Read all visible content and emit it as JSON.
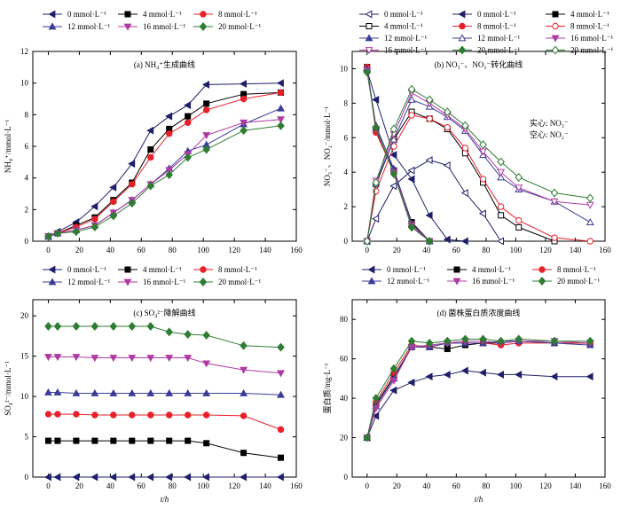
{
  "chart_data": [
    {
      "type": "line",
      "title": "(a) NH₄⁺生成曲线",
      "xlabel": "",
      "ylabel": "NH₄⁺/mmol·L⁻¹",
      "xlim": [
        -10,
        160
      ],
      "ylim": [
        0,
        12
      ],
      "xticks": [
        0,
        20,
        40,
        60,
        80,
        100,
        120,
        140,
        160
      ],
      "yticks": [
        0,
        2,
        4,
        6,
        8,
        10,
        12
      ],
      "x": [
        0,
        6,
        18,
        30,
        42,
        54,
        66,
        78,
        90,
        102,
        126,
        150
      ],
      "series": [
        {
          "name": "0 mmol·L⁻¹",
          "color": "#1f1f6b",
          "marker": "tri-left",
          "values": [
            0.3,
            0.6,
            1.2,
            2.2,
            3.4,
            4.9,
            7.0,
            7.9,
            8.6,
            9.9,
            9.95,
            10.0
          ]
        },
        {
          "name": "4 mmol·L⁻¹",
          "color": "#000000",
          "marker": "square",
          "values": [
            0.3,
            0.5,
            1.0,
            1.5,
            2.6,
            3.7,
            5.8,
            7.1,
            7.9,
            8.7,
            9.3,
            9.4
          ]
        },
        {
          "name": "8 mmol·L⁻¹",
          "color": "#e8202a",
          "marker": "circle",
          "values": [
            0.3,
            0.5,
            0.9,
            1.4,
            2.5,
            3.6,
            5.3,
            6.8,
            7.5,
            8.3,
            9.0,
            9.4
          ]
        },
        {
          "name": "12 mmol·L⁻¹",
          "color": "#3b3b9a",
          "marker": "tri-up",
          "values": [
            0.3,
            0.5,
            0.7,
            1.0,
            1.8,
            2.6,
            3.6,
            4.6,
            5.7,
            6.1,
            7.4,
            8.4
          ]
        },
        {
          "name": "16 mmol·L⁻¹",
          "color": "#b03aa3",
          "marker": "tri-down",
          "values": [
            0.3,
            0.5,
            0.7,
            1.0,
            1.8,
            2.6,
            3.6,
            4.5,
            5.5,
            6.7,
            7.5,
            7.7
          ]
        },
        {
          "name": "20 mmol·L⁻¹",
          "color": "#2e7d32",
          "marker": "diamond",
          "values": [
            0.3,
            0.5,
            0.6,
            0.9,
            1.6,
            2.4,
            3.5,
            4.2,
            5.3,
            5.8,
            7.0,
            7.3
          ]
        }
      ]
    },
    {
      "type": "line",
      "title": "(b) NO₃⁻、NO₂⁻转化曲线",
      "xlabel": "",
      "ylabel": "NO₃⁻、NO₂⁻/mmol·L⁻¹",
      "xlim": [
        -10,
        160
      ],
      "ylim": [
        0,
        11
      ],
      "xticks": [
        0,
        20,
        40,
        60,
        80,
        100,
        120,
        140,
        160
      ],
      "yticks": [
        0,
        2,
        4,
        6,
        8,
        10
      ],
      "annotation": [
        "实心: NO₃⁻",
        "空心: NO₂⁻"
      ],
      "series": [
        {
          "name": "0 mmol·L⁻¹",
          "color": "#1f1f6b",
          "marker": "tri-left",
          "filled": false,
          "x": [
            0,
            6,
            18,
            30,
            42,
            54,
            66,
            78,
            90
          ],
          "values": [
            0.0,
            1.3,
            3.2,
            4.1,
            4.7,
            4.4,
            2.8,
            1.6,
            0.0
          ]
        },
        {
          "name": "0 mmol·L⁻¹",
          "color": "#1f1f6b",
          "marker": "tri-left",
          "filled": true,
          "x": [
            0,
            6,
            18,
            30,
            42,
            54,
            66
          ],
          "values": [
            9.9,
            8.2,
            5.0,
            3.6,
            1.5,
            0.1,
            0.0
          ]
        },
        {
          "name": "4 mmol·L⁻¹",
          "color": "#000000",
          "marker": "square",
          "filled": true,
          "x": [
            0,
            6,
            18,
            30,
            42
          ],
          "values": [
            10.1,
            6.4,
            4.1,
            1.1,
            0.0
          ]
        },
        {
          "name": "4 mmol·L⁻¹",
          "color": "#000000",
          "marker": "square",
          "filled": false,
          "x": [
            0,
            6,
            18,
            30,
            42,
            54,
            66,
            78,
            90,
            102,
            126
          ],
          "values": [
            0.0,
            3.3,
            5.9,
            7.5,
            7.1,
            6.5,
            5.1,
            3.4,
            1.5,
            0.8,
            0.0
          ]
        },
        {
          "name": "8 mmol·L⁻¹",
          "color": "#e8202a",
          "marker": "circle",
          "filled": true,
          "x": [
            0,
            6,
            18,
            30,
            42
          ],
          "values": [
            10.1,
            6.3,
            4.0,
            1.0,
            0.0
          ]
        },
        {
          "name": "8 mmol·L⁻¹",
          "color": "#e8202a",
          "marker": "circle",
          "filled": false,
          "x": [
            0,
            6,
            18,
            30,
            42,
            54,
            66,
            78,
            90,
            102,
            126,
            150
          ],
          "values": [
            0.0,
            2.9,
            5.5,
            7.3,
            7.1,
            6.6,
            5.4,
            3.6,
            2.0,
            1.2,
            0.2,
            0.0
          ]
        },
        {
          "name": "12 mmol·L⁻¹",
          "color": "#3b3b9a",
          "marker": "tri-up",
          "filled": true,
          "x": [
            0,
            6,
            18,
            30,
            42
          ],
          "values": [
            10.0,
            6.7,
            4.2,
            1.0,
            0.0
          ]
        },
        {
          "name": "12 mmol·L⁻¹",
          "color": "#3b3b9a",
          "marker": "tri-up",
          "filled": false,
          "x": [
            0,
            6,
            18,
            30,
            42,
            54,
            66,
            78,
            90,
            102,
            126,
            150
          ],
          "values": [
            0.0,
            3.4,
            5.9,
            8.2,
            7.8,
            7.2,
            6.4,
            5.0,
            3.7,
            3.0,
            2.3,
            1.1
          ]
        },
        {
          "name": "16 mmol·L⁻¹",
          "color": "#b03aa3",
          "marker": "tri-down",
          "filled": true,
          "x": [
            0,
            6,
            18,
            30,
            42
          ],
          "values": [
            9.9,
            6.5,
            4.0,
            0.9,
            0.0
          ]
        },
        {
          "name": "16 mmol·L⁻¹",
          "color": "#b03aa3",
          "marker": "tri-down",
          "filled": false,
          "x": [
            0,
            6,
            18,
            30,
            42,
            54,
            66,
            78,
            90,
            102,
            126,
            150
          ],
          "values": [
            0.0,
            3.5,
            6.2,
            8.6,
            8.0,
            7.3,
            6.5,
            5.2,
            4.0,
            3.1,
            2.3,
            2.1
          ]
        },
        {
          "name": "20 mmol·L⁻¹",
          "color": "#2e7d32",
          "marker": "diamond",
          "filled": true,
          "x": [
            0,
            6,
            18,
            30,
            42
          ],
          "values": [
            9.8,
            6.6,
            3.9,
            0.8,
            0.0
          ]
        },
        {
          "name": "20 mmol·L⁻¹",
          "color": "#2e7d32",
          "marker": "diamond",
          "filled": false,
          "x": [
            0,
            6,
            18,
            30,
            42,
            54,
            66,
            78,
            90,
            102,
            126,
            150
          ],
          "values": [
            0.0,
            3.4,
            6.5,
            8.8,
            8.2,
            7.5,
            6.7,
            5.6,
            4.6,
            3.7,
            2.8,
            2.5
          ]
        }
      ]
    },
    {
      "type": "line",
      "title": "(c) SO₄²⁻降解曲线",
      "xlabel": "t/h",
      "ylabel": "SO₄²⁻/mmol·L⁻¹",
      "xlim": [
        -10,
        160
      ],
      "ylim": [
        0,
        22
      ],
      "xticks": [
        0,
        20,
        40,
        60,
        80,
        100,
        120,
        140,
        160
      ],
      "yticks": [
        0,
        5,
        10,
        15,
        20
      ],
      "x": [
        0,
        6,
        18,
        30,
        42,
        54,
        66,
        78,
        90,
        102,
        126,
        150
      ],
      "series": [
        {
          "name": "0 mmol·L⁻¹",
          "color": "#1f1f6b",
          "marker": "tri-left",
          "values": [
            0,
            0,
            0,
            0,
            0,
            0,
            0,
            0,
            0,
            0,
            0,
            0
          ]
        },
        {
          "name": "4 mmol·L⁻¹",
          "color": "#000000",
          "marker": "square",
          "values": [
            4.5,
            4.5,
            4.5,
            4.5,
            4.5,
            4.5,
            4.5,
            4.5,
            4.5,
            4.2,
            3.0,
            2.4
          ]
        },
        {
          "name": "8 mmol·L⁻¹",
          "color": "#e8202a",
          "marker": "circle",
          "values": [
            7.8,
            7.8,
            7.8,
            7.7,
            7.7,
            7.7,
            7.7,
            7.7,
            7.7,
            7.7,
            7.6,
            5.9
          ]
        },
        {
          "name": "12 mmol·L⁻¹",
          "color": "#3b3b9a",
          "marker": "tri-up",
          "values": [
            10.5,
            10.5,
            10.4,
            10.4,
            10.4,
            10.4,
            10.4,
            10.4,
            10.4,
            10.4,
            10.4,
            10.2
          ]
        },
        {
          "name": "16 mmol·L⁻¹",
          "color": "#b03aa3",
          "marker": "tri-down",
          "values": [
            14.9,
            14.9,
            14.9,
            14.8,
            14.8,
            14.8,
            14.8,
            14.8,
            14.8,
            14.1,
            13.3,
            12.9
          ]
        },
        {
          "name": "20 mmol·L⁻¹",
          "color": "#2e7d32",
          "marker": "diamond",
          "values": [
            18.7,
            18.7,
            18.7,
            18.7,
            18.7,
            18.7,
            18.7,
            18.0,
            17.7,
            17.6,
            16.3,
            16.1
          ]
        }
      ]
    },
    {
      "type": "line",
      "title": "(d) 菌株蛋白质浓度曲线",
      "xlabel": "t/h",
      "ylabel": "蛋白质/mg·L⁻¹",
      "xlim": [
        -10,
        160
      ],
      "ylim": [
        0,
        90
      ],
      "xticks": [
        0,
        20,
        40,
        60,
        80,
        100,
        120,
        140,
        160
      ],
      "yticks": [
        0,
        20,
        40,
        60,
        80
      ],
      "x": [
        0,
        6,
        18,
        30,
        42,
        54,
        66,
        78,
        90,
        102,
        126,
        150
      ],
      "series": [
        {
          "name": "0 mmol·L⁻¹",
          "color": "#1f1f6b",
          "marker": "tri-left",
          "values": [
            20,
            31,
            44,
            48,
            51,
            52,
            54,
            53,
            52,
            52,
            51,
            51
          ]
        },
        {
          "name": "4 mmol·L⁻¹",
          "color": "#000000",
          "marker": "square",
          "values": [
            20,
            37,
            51,
            66,
            66,
            65,
            67,
            68,
            68,
            69,
            68,
            68
          ]
        },
        {
          "name": "8 mmol·L⁻¹",
          "color": "#e8202a",
          "marker": "circle",
          "values": [
            20,
            38,
            53,
            67,
            66,
            68,
            68,
            68,
            67,
            68,
            68,
            68
          ]
        },
        {
          "name": "12 mmol·L⁻¹",
          "color": "#3b3b9a",
          "marker": "tri-up",
          "values": [
            20,
            36,
            50,
            66,
            66,
            68,
            68,
            68,
            69,
            69,
            68,
            67
          ]
        },
        {
          "name": "16 mmol·L⁻¹",
          "color": "#b03aa3",
          "marker": "tri-down",
          "values": [
            20,
            35,
            49,
            66,
            67,
            68,
            69,
            69,
            68,
            69,
            69,
            68
          ]
        },
        {
          "name": "20 mmol·L⁻¹",
          "color": "#2e7d32",
          "marker": "diamond",
          "values": [
            20,
            40,
            55,
            69,
            68,
            69,
            70,
            70,
            69,
            70,
            69,
            69
          ]
        }
      ]
    }
  ]
}
